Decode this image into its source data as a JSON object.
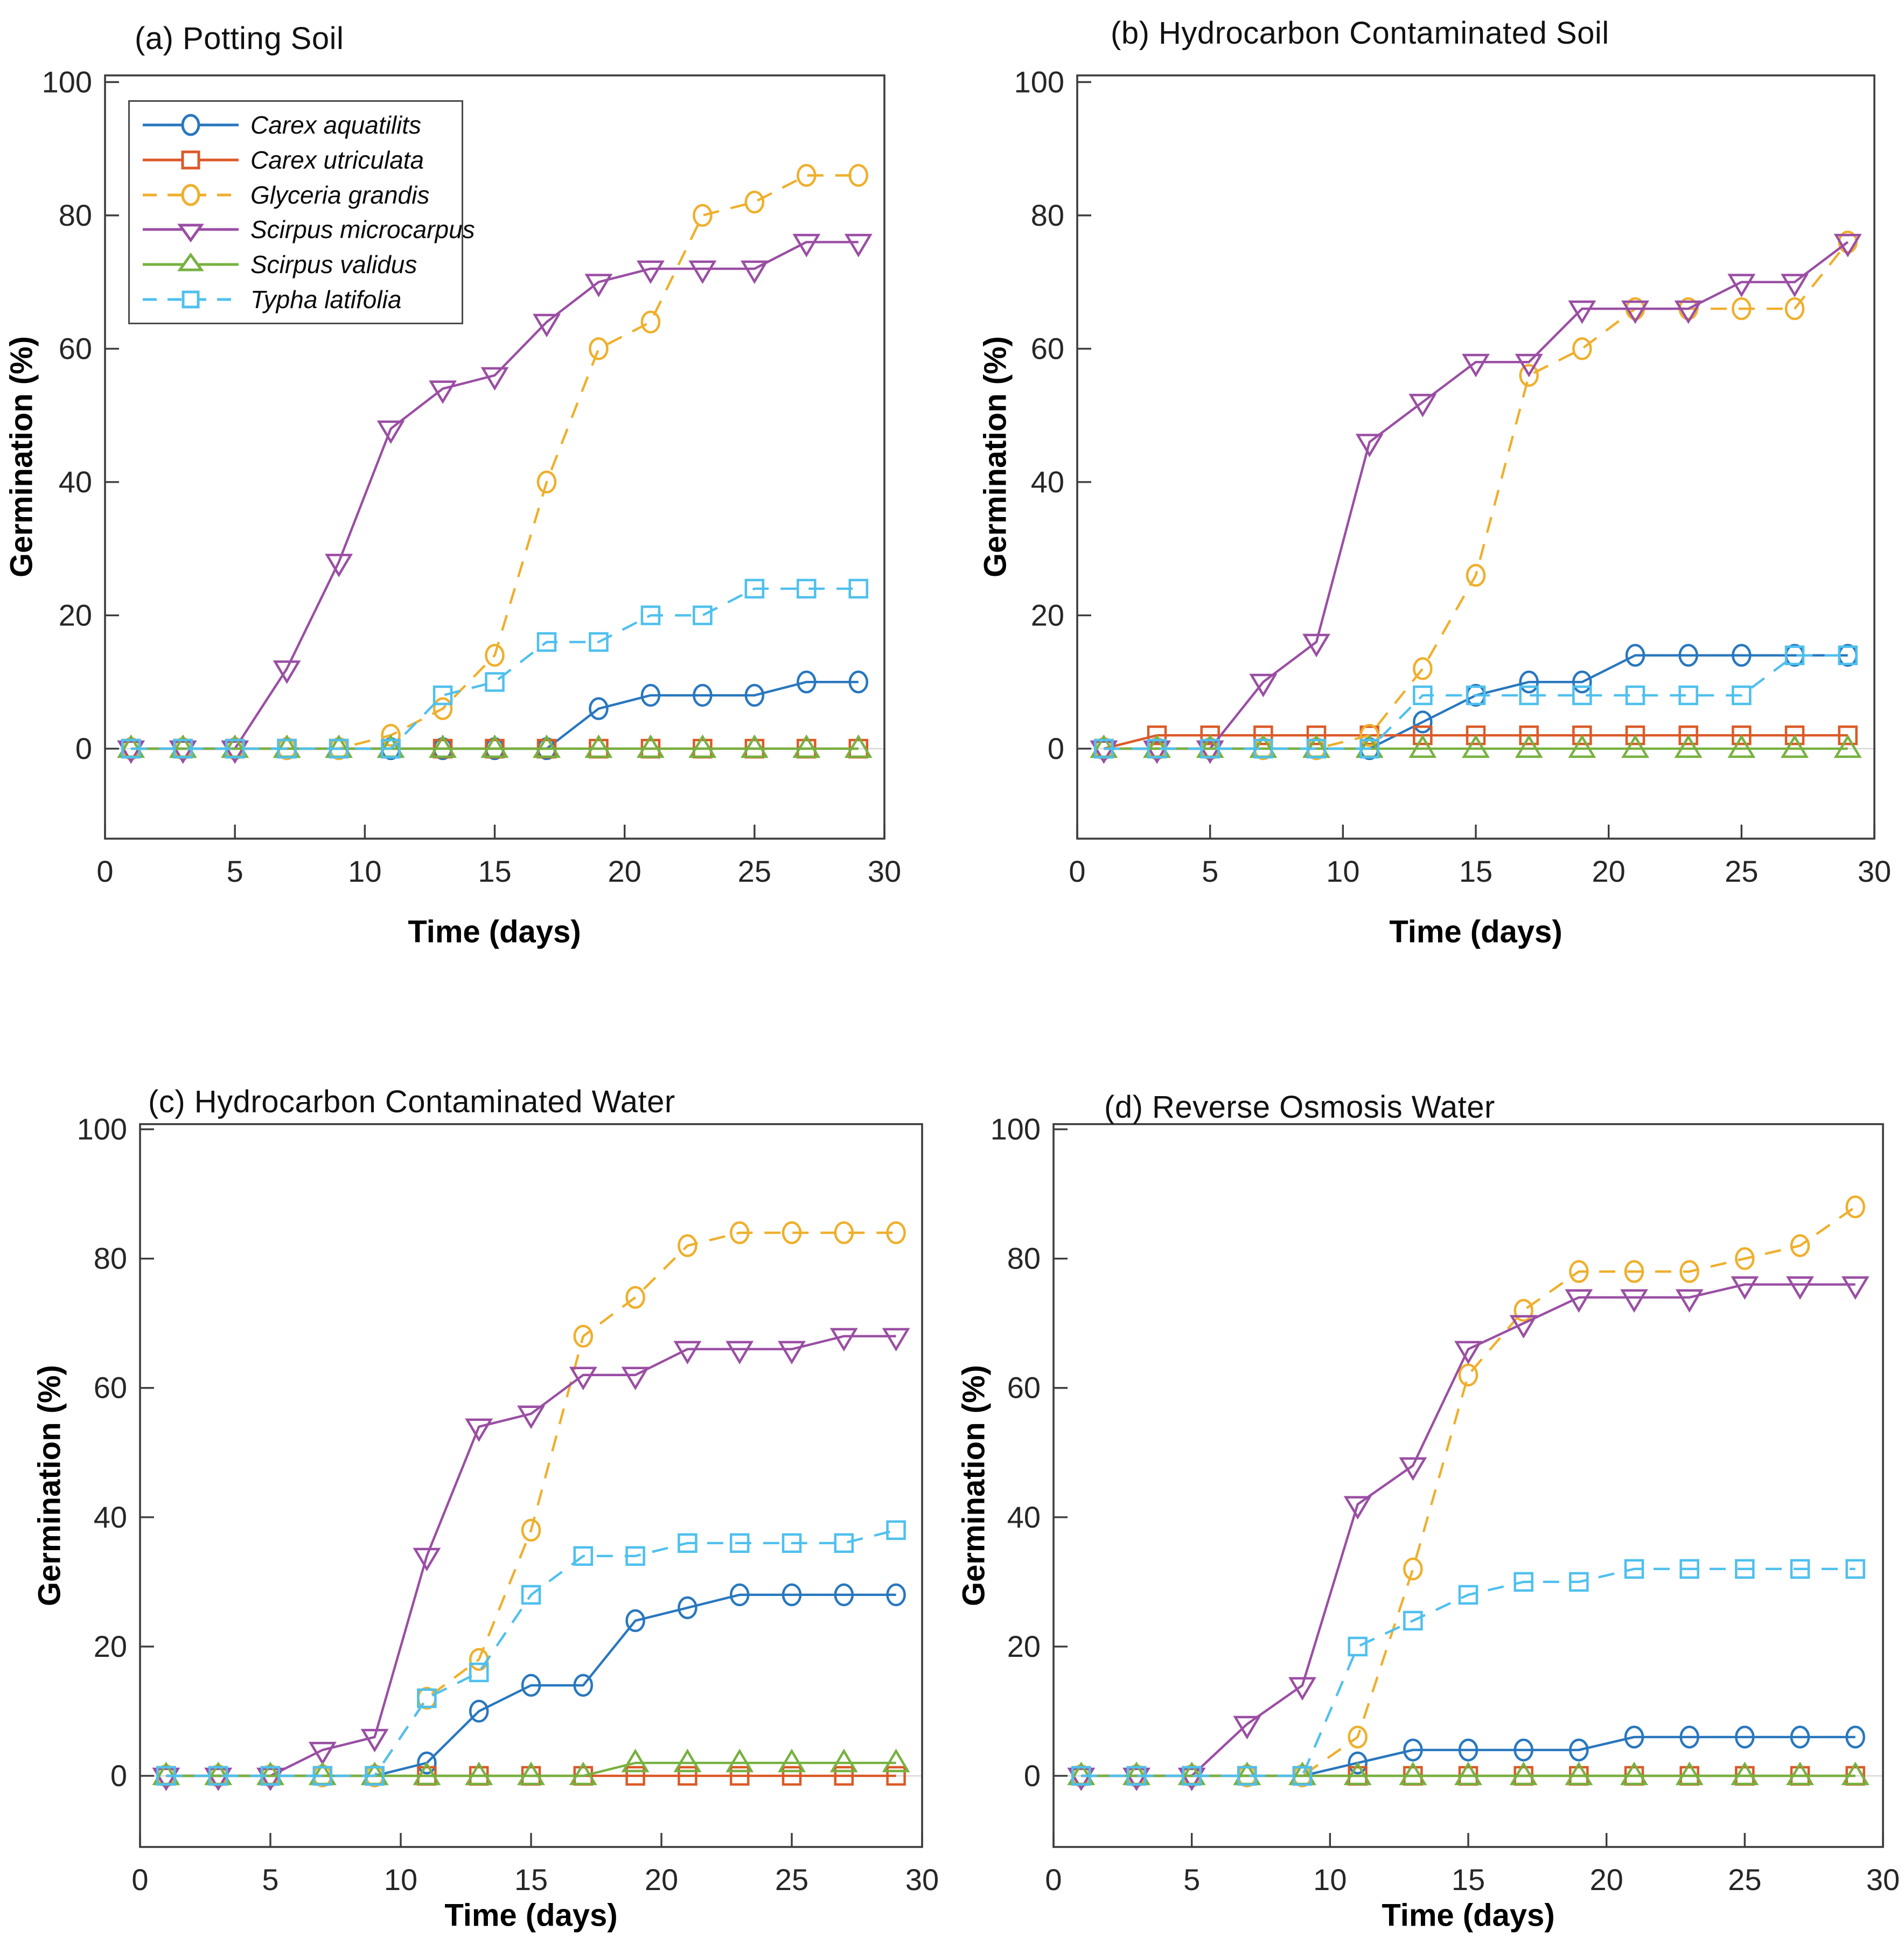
{
  "figure": {
    "background": "#ffffff",
    "axis_color": "#3d3d3d",
    "tick_label_color": "#262626",
    "zero_line_color": "#d8d8d8"
  },
  "chart_data": [
    {
      "type": "line",
      "title": "(a) Potting Soil",
      "xlabel": "Time (days)",
      "ylabel": "Germination (%)",
      "x": [
        1,
        3,
        5,
        7,
        9,
        11,
        13,
        15,
        17,
        19,
        21,
        23,
        25,
        27,
        29
      ],
      "xlim": [
        0,
        30
      ],
      "ylim": [
        -13.5,
        101
      ],
      "x_ticks": [
        0,
        5,
        10,
        15,
        20,
        25,
        30
      ],
      "y_ticks": [
        0,
        20,
        40,
        60,
        80,
        100
      ],
      "grid": false,
      "legend_position": "top-left",
      "show_legend": true,
      "series": [
        {
          "name": "Carex aquatilits",
          "color": "#2877BE",
          "marker": "circle",
          "line": "solid",
          "values": [
            0,
            0,
            0,
            0,
            0,
            0,
            0,
            0,
            0,
            6,
            8,
            8,
            8,
            10,
            10
          ]
        },
        {
          "name": "Carex utriculata",
          "color": "#DB5A28",
          "marker": "square",
          "line": "solid",
          "values": [
            0,
            0,
            0,
            0,
            0,
            0,
            0,
            0,
            0,
            0,
            0,
            0,
            0,
            0,
            0
          ]
        },
        {
          "name": "Glyceria grandis",
          "color": "#EFAF2C",
          "marker": "circle",
          "line": "dashed",
          "values": [
            0,
            0,
            0,
            0,
            0,
            2,
            6,
            14,
            40,
            60,
            64,
            80,
            82,
            86,
            86
          ]
        },
        {
          "name": "Scirpus microcarpus",
          "color": "#9A4EA3",
          "marker": "triangle-down",
          "line": "solid",
          "values": [
            0,
            0,
            0,
            12,
            28,
            48,
            54,
            56,
            64,
            70,
            72,
            72,
            72,
            76,
            76
          ]
        },
        {
          "name": "Scirpus validus",
          "color": "#77B140",
          "marker": "triangle-up",
          "line": "solid",
          "values": [
            0,
            0,
            0,
            0,
            0,
            0,
            0,
            0,
            0,
            0,
            0,
            0,
            0,
            0,
            0
          ]
        },
        {
          "name": "Typha latifolia",
          "color": "#4FC0EE",
          "marker": "square",
          "line": "dashed",
          "values": [
            0,
            0,
            0,
            0,
            0,
            0,
            8,
            10,
            16,
            16,
            20,
            20,
            24,
            24,
            24
          ]
        }
      ]
    },
    {
      "type": "line",
      "title": "(b) Hydrocarbon Contaminated Soil",
      "xlabel": "Time (days)",
      "ylabel": "Germination (%)",
      "x": [
        1,
        3,
        5,
        7,
        9,
        11,
        13,
        15,
        17,
        19,
        21,
        23,
        25,
        27,
        29
      ],
      "xlim": [
        0,
        30
      ],
      "ylim": [
        -13.5,
        101
      ],
      "x_ticks": [
        0,
        5,
        10,
        15,
        20,
        25,
        30
      ],
      "y_ticks": [
        0,
        20,
        40,
        60,
        80,
        100
      ],
      "grid": false,
      "legend_position": "none",
      "show_legend": false,
      "series": [
        {
          "name": "Carex aquatilits",
          "color": "#2877BE",
          "marker": "circle",
          "line": "solid",
          "values": [
            0,
            0,
            0,
            0,
            0,
            0,
            4,
            8,
            10,
            10,
            14,
            14,
            14,
            14,
            14
          ]
        },
        {
          "name": "Carex utriculata",
          "color": "#DB5A28",
          "marker": "square",
          "line": "solid",
          "values": [
            0,
            2,
            2,
            2,
            2,
            2,
            2,
            2,
            2,
            2,
            2,
            2,
            2,
            2,
            2
          ]
        },
        {
          "name": "Glyceria grandis",
          "color": "#EFAF2C",
          "marker": "circle",
          "line": "dashed",
          "values": [
            0,
            0,
            0,
            0,
            0,
            2,
            12,
            26,
            56,
            60,
            66,
            66,
            66,
            66,
            76
          ]
        },
        {
          "name": "Scirpus microcarpus",
          "color": "#9A4EA3",
          "marker": "triangle-down",
          "line": "solid",
          "values": [
            0,
            0,
            0,
            10,
            16,
            46,
            52,
            58,
            58,
            66,
            66,
            66,
            70,
            70,
            76
          ]
        },
        {
          "name": "Scirpus validus",
          "color": "#77B140",
          "marker": "triangle-up",
          "line": "solid",
          "values": [
            0,
            0,
            0,
            0,
            0,
            0,
            0,
            0,
            0,
            0,
            0,
            0,
            0,
            0,
            0
          ]
        },
        {
          "name": "Typha latifolia",
          "color": "#4FC0EE",
          "marker": "square",
          "line": "dashed",
          "values": [
            0,
            0,
            0,
            0,
            0,
            0,
            8,
            8,
            8,
            8,
            8,
            8,
            8,
            14,
            14
          ]
        }
      ]
    },
    {
      "type": "line",
      "title": "(c) Hydrocarbon Contaminated Water",
      "xlabel": "Time (days)",
      "ylabel": "Germination (%)",
      "x": [
        1,
        3,
        5,
        7,
        9,
        11,
        13,
        15,
        17,
        19,
        21,
        23,
        25,
        27,
        29
      ],
      "xlim": [
        0,
        30
      ],
      "ylim": [
        -11,
        100.8
      ],
      "x_ticks": [
        0,
        5,
        10,
        15,
        20,
        25,
        30
      ],
      "y_ticks": [
        0,
        20,
        40,
        60,
        80,
        100
      ],
      "grid": false,
      "legend_position": "none",
      "show_legend": false,
      "series": [
        {
          "name": "Carex aquatilits",
          "color": "#2877BE",
          "marker": "circle",
          "line": "solid",
          "values": [
            0,
            0,
            0,
            0,
            0,
            2,
            10,
            14,
            14,
            24,
            26,
            28,
            28,
            28,
            28
          ]
        },
        {
          "name": "Carex utriculata",
          "color": "#DB5A28",
          "marker": "square",
          "line": "solid",
          "values": [
            0,
            0,
            0,
            0,
            0,
            0,
            0,
            0,
            0,
            0,
            0,
            0,
            0,
            0,
            0
          ]
        },
        {
          "name": "Glyceria grandis",
          "color": "#EFAF2C",
          "marker": "circle",
          "line": "dashed",
          "values": [
            0,
            0,
            0,
            0,
            0,
            12,
            18,
            38,
            68,
            74,
            82,
            84,
            84,
            84,
            84
          ]
        },
        {
          "name": "Scirpus microcarpus",
          "color": "#9A4EA3",
          "marker": "triangle-down",
          "line": "solid",
          "values": [
            0,
            0,
            0,
            4,
            6,
            34,
            54,
            56,
            62,
            62,
            66,
            66,
            66,
            68,
            68
          ]
        },
        {
          "name": "Scirpus validus",
          "color": "#77B140",
          "marker": "triangle-up",
          "line": "solid",
          "values": [
            0,
            0,
            0,
            0,
            0,
            0,
            0,
            0,
            0,
            2,
            2,
            2,
            2,
            2,
            2
          ]
        },
        {
          "name": "Typha latifolia",
          "color": "#4FC0EE",
          "marker": "square",
          "line": "dashed",
          "values": [
            0,
            0,
            0,
            0,
            0,
            12,
            16,
            28,
            34,
            34,
            36,
            36,
            36,
            36,
            38
          ]
        }
      ]
    },
    {
      "type": "line",
      "title": "(d) Reverse Osmosis Water",
      "xlabel": "Time (days)",
      "ylabel": "Germination (%)",
      "x": [
        1,
        3,
        5,
        7,
        9,
        11,
        13,
        15,
        17,
        19,
        21,
        23,
        25,
        27,
        29
      ],
      "xlim": [
        0,
        30
      ],
      "ylim": [
        -11,
        100.8
      ],
      "x_ticks": [
        0,
        5,
        10,
        15,
        20,
        25,
        30
      ],
      "y_ticks": [
        0,
        20,
        40,
        60,
        80,
        100
      ],
      "grid": false,
      "legend_position": "none",
      "show_legend": false,
      "series": [
        {
          "name": "Carex aquatilits",
          "color": "#2877BE",
          "marker": "circle",
          "line": "solid",
          "values": [
            0,
            0,
            0,
            0,
            0,
            2,
            4,
            4,
            4,
            4,
            6,
            6,
            6,
            6,
            6
          ]
        },
        {
          "name": "Carex utriculata",
          "color": "#DB5A28",
          "marker": "square",
          "line": "solid",
          "values": [
            0,
            0,
            0,
            0,
            0,
            0,
            0,
            0,
            0,
            0,
            0,
            0,
            0,
            0,
            0
          ]
        },
        {
          "name": "Glyceria grandis",
          "color": "#EFAF2C",
          "marker": "circle",
          "line": "dashed",
          "values": [
            0,
            0,
            0,
            0,
            0,
            6,
            32,
            62,
            72,
            78,
            78,
            78,
            80,
            82,
            88
          ]
        },
        {
          "name": "Scirpus microcarpus",
          "color": "#9A4EA3",
          "marker": "triangle-down",
          "line": "solid",
          "values": [
            0,
            0,
            0,
            8,
            14,
            42,
            48,
            66,
            70,
            74,
            74,
            74,
            76,
            76,
            76
          ]
        },
        {
          "name": "Scirpus validus",
          "color": "#77B140",
          "marker": "triangle-up",
          "line": "solid",
          "values": [
            0,
            0,
            0,
            0,
            0,
            0,
            0,
            0,
            0,
            0,
            0,
            0,
            0,
            0,
            0
          ]
        },
        {
          "name": "Typha latifolia",
          "color": "#4FC0EE",
          "marker": "square",
          "line": "dashed",
          "values": [
            0,
            0,
            0,
            0,
            0,
            20,
            24,
            28,
            30,
            30,
            32,
            32,
            32,
            32,
            32
          ]
        }
      ]
    }
  ]
}
